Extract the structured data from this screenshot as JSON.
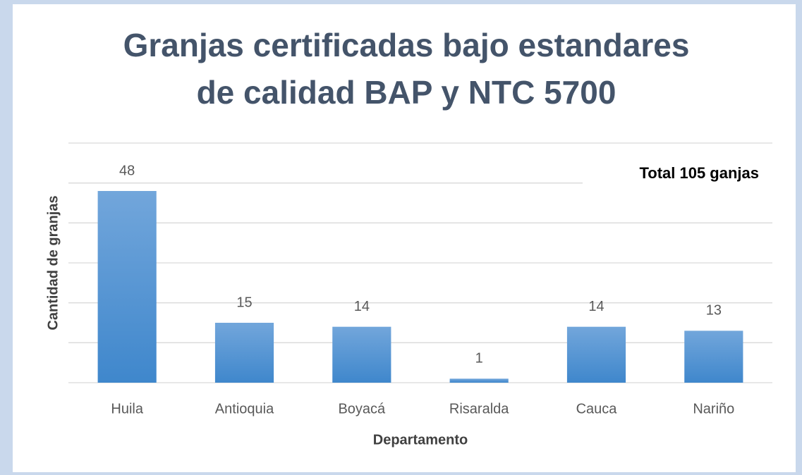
{
  "chart_data": {
    "type": "bar",
    "title": [
      "Granjas certificadas bajo estandares",
      "de calidad BAP y NTC 5700"
    ],
    "annotation": "Total 105 ganjas",
    "x_label": "Departamento",
    "y_label": "Cantidad de granjas",
    "categories": [
      "Huila",
      "Antioquia",
      "Boyacá",
      "Risaralda",
      "Cauca",
      "Nariño"
    ],
    "values": [
      48,
      15,
      14,
      1,
      14,
      13
    ],
    "color": "#5b9bd5",
    "ylim": [
      0,
      60
    ],
    "yticks": [
      0,
      10,
      20,
      30,
      40,
      50,
      60
    ],
    "grid": true
  }
}
